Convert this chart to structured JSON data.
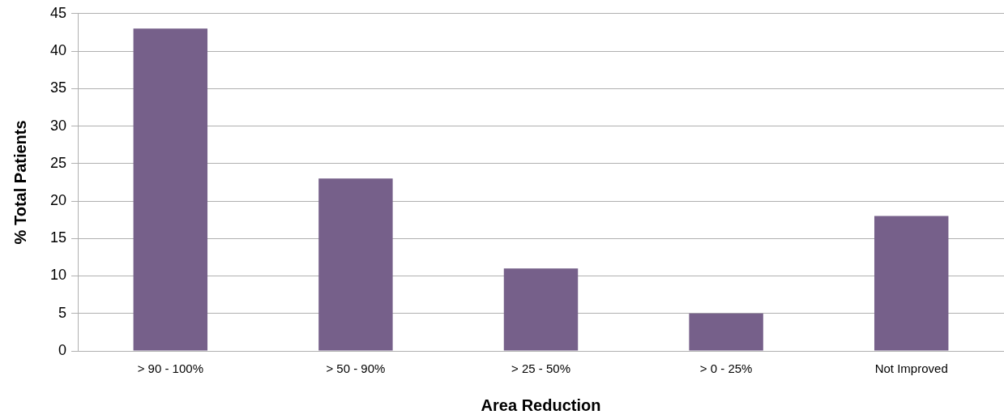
{
  "chart_data": {
    "type": "bar",
    "xlabel": "Area Reduction",
    "ylabel": "% Total Patients",
    "categories": [
      "> 90 - 100%",
      "> 50 - 90%",
      "> 25 - 50%",
      "> 0 - 25%",
      "Not Improved"
    ],
    "values": [
      43,
      23,
      11,
      5,
      18
    ],
    "color": "#76608a",
    "ylim": [
      0,
      45
    ],
    "yticks": [
      0,
      5,
      10,
      15,
      20,
      25,
      30,
      35,
      40,
      45
    ],
    "grid": "y",
    "legend": false
  }
}
